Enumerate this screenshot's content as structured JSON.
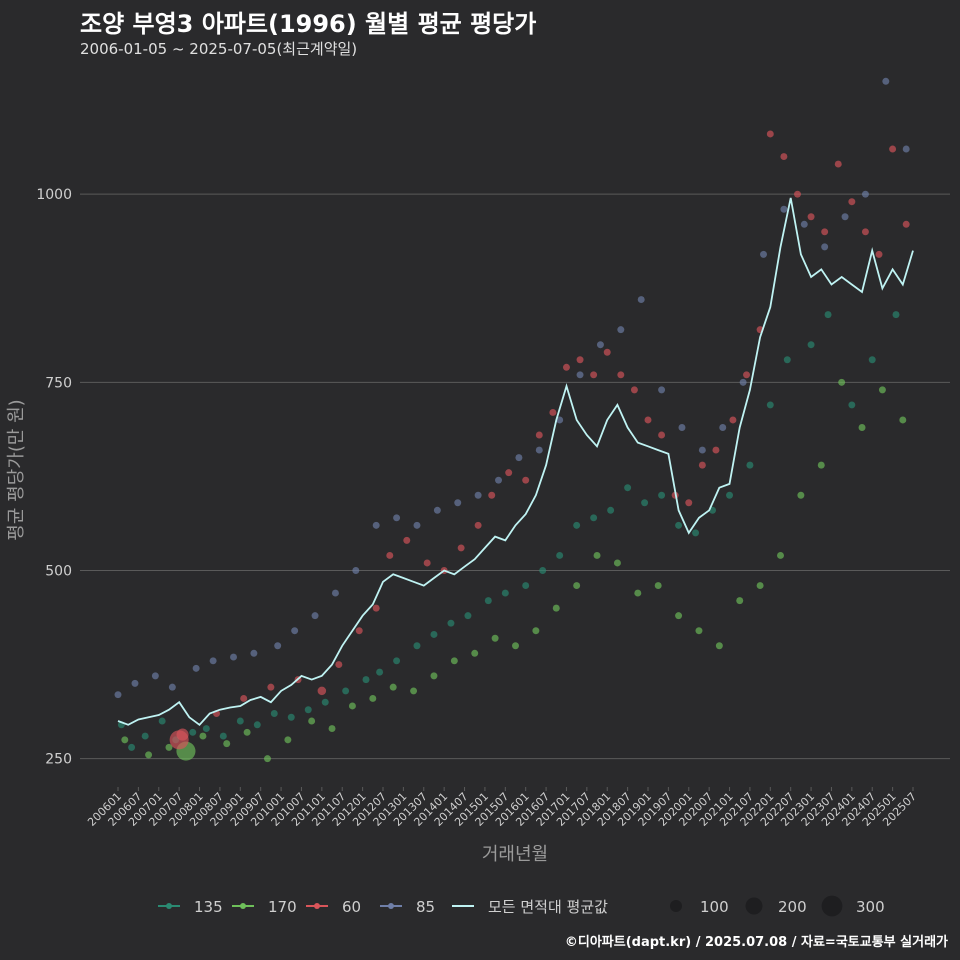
{
  "header": {
    "title": "조양 부영3 아파트(1996) 월별 평균 평당가",
    "subtitle": "2006-01-05 ~ 2025-07-05(최근계약일)"
  },
  "caption": "©디아파트(dapt.kr) / 2025.07.08 / 자료=국토교통부 실거래가",
  "colors": {
    "background": "#2a2a2c",
    "grid": "#5a5a5a",
    "text": "#cfcfcf",
    "series_135": "#2a8a72",
    "series_170": "#6ec05a",
    "series_60": "#d9555a",
    "series_85": "#6f7fa8",
    "average_line": "#bff3f3"
  },
  "chart_data": {
    "type": "scatter",
    "title": "조양 부영3 아파트(1996) 월별 평균 평당가",
    "subtitle": "2006-01-05 ~ 2025-07-05(최근계약일)",
    "xlabel": "거래년월",
    "ylabel": "평균 평당가(만 원)",
    "x_range": [
      "2006-01",
      "2025-07"
    ],
    "ylim": [
      215,
      1165
    ],
    "yticks": [
      250,
      500,
      750,
      1000
    ],
    "xtick_labels": [
      "200601",
      "200607",
      "200701",
      "200707",
      "200801",
      "200807",
      "200901",
      "200907",
      "201001",
      "201007",
      "201101",
      "201107",
      "201201",
      "201207",
      "201301",
      "201307",
      "201401",
      "201407",
      "201501",
      "201507",
      "201601",
      "201607",
      "201701",
      "201707",
      "201801",
      "201807",
      "201901",
      "201907",
      "202001",
      "202007",
      "202101",
      "202107",
      "202201",
      "202207",
      "202301",
      "202307",
      "202401",
      "202407",
      "202501",
      "202507"
    ],
    "grid": true,
    "legend": {
      "position": "bottom",
      "color_entries": [
        "135",
        "170",
        "60",
        "85",
        "모든 면적대 평균값"
      ],
      "size_entries": [
        "100",
        "200",
        "300"
      ]
    },
    "average_line": {
      "name": "모든 면적대 평균값",
      "x": [
        "2006-01",
        "2006-04",
        "2006-07",
        "2006-10",
        "2007-01",
        "2007-04",
        "2007-07",
        "2007-10",
        "2008-01",
        "2008-04",
        "2008-07",
        "2008-10",
        "2009-01",
        "2009-04",
        "2009-07",
        "2009-10",
        "2010-01",
        "2010-04",
        "2010-07",
        "2010-10",
        "2011-01",
        "2011-04",
        "2011-07",
        "2011-10",
        "2012-01",
        "2012-04",
        "2012-07",
        "2012-10",
        "2013-01",
        "2013-04",
        "2013-07",
        "2013-10",
        "2014-01",
        "2014-04",
        "2014-07",
        "2014-10",
        "2015-01",
        "2015-04",
        "2015-07",
        "2015-10",
        "2016-01",
        "2016-04",
        "2016-07",
        "2016-10",
        "2017-01",
        "2017-04",
        "2017-07",
        "2017-10",
        "2018-01",
        "2018-04",
        "2018-07",
        "2018-10",
        "2019-01",
        "2019-04",
        "2019-07",
        "2019-10",
        "2020-01",
        "2020-04",
        "2020-07",
        "2020-10",
        "2021-01",
        "2021-04",
        "2021-07",
        "2021-10",
        "2022-01",
        "2022-04",
        "2022-07",
        "2022-10",
        "2023-01",
        "2023-04",
        "2023-07",
        "2023-10",
        "2024-01",
        "2024-04",
        "2024-07",
        "2024-10",
        "2025-01",
        "2025-04",
        "2025-07"
      ],
      "y": [
        300,
        295,
        302,
        305,
        308,
        315,
        325,
        305,
        295,
        310,
        315,
        318,
        320,
        328,
        332,
        325,
        340,
        348,
        360,
        355,
        360,
        375,
        400,
        420,
        440,
        455,
        485,
        495,
        490,
        485,
        480,
        490,
        500,
        495,
        505,
        515,
        530,
        545,
        540,
        560,
        575,
        600,
        640,
        700,
        745,
        700,
        680,
        665,
        700,
        720,
        690,
        670,
        665,
        660,
        655,
        580,
        550,
        570,
        580,
        610,
        615,
        690,
        740,
        810,
        850,
        930,
        995,
        920,
        890,
        900,
        880,
        890,
        880,
        870,
        925,
        875,
        900,
        880,
        925
      ]
    },
    "series": [
      {
        "name": "135",
        "color": "#2a8a72",
        "x": [
          "2006-02",
          "2006-05",
          "2006-09",
          "2007-02",
          "2007-06",
          "2007-11",
          "2008-03",
          "2008-08",
          "2009-01",
          "2009-06",
          "2009-11",
          "2010-04",
          "2010-09",
          "2011-02",
          "2011-08",
          "2012-02",
          "2012-06",
          "2012-11",
          "2013-05",
          "2013-10",
          "2014-03",
          "2014-08",
          "2015-02",
          "2015-07",
          "2016-01",
          "2016-06",
          "2016-11",
          "2017-04",
          "2017-09",
          "2018-02",
          "2018-07",
          "2018-12",
          "2019-05",
          "2019-10",
          "2020-03",
          "2020-08",
          "2021-01",
          "2021-07",
          "2022-01",
          "2022-06",
          "2023-01",
          "2023-06",
          "2024-01",
          "2024-07",
          "2025-02"
        ],
        "y": [
          295,
          265,
          280,
          300,
          275,
          285,
          290,
          280,
          300,
          295,
          310,
          305,
          315,
          325,
          340,
          355,
          365,
          380,
          400,
          415,
          430,
          440,
          460,
          470,
          480,
          500,
          520,
          560,
          570,
          580,
          610,
          590,
          600,
          560,
          550,
          580,
          600,
          640,
          720,
          780,
          800,
          840,
          720,
          780,
          840
        ],
        "sizes": [
          40,
          40,
          40,
          40,
          40,
          40,
          40,
          40,
          40,
          40,
          40,
          40,
          40,
          40,
          40,
          40,
          40,
          40,
          40,
          40,
          40,
          40,
          40,
          40,
          40,
          40,
          40,
          40,
          40,
          40,
          40,
          40,
          40,
          40,
          40,
          40,
          40,
          40,
          40,
          40,
          40,
          40,
          40,
          40,
          40
        ]
      },
      {
        "name": "170",
        "color": "#6ec05a",
        "x": [
          "2006-03",
          "2006-10",
          "2007-04",
          "2007-09",
          "2008-02",
          "2008-09",
          "2009-03",
          "2009-09",
          "2010-03",
          "2010-10",
          "2011-04",
          "2011-10",
          "2012-04",
          "2012-10",
          "2013-04",
          "2013-10",
          "2014-04",
          "2014-10",
          "2015-04",
          "2015-10",
          "2016-04",
          "2016-10",
          "2017-04",
          "2017-10",
          "2018-04",
          "2018-10",
          "2019-04",
          "2019-10",
          "2020-04",
          "2020-10",
          "2021-04",
          "2021-10",
          "2022-04",
          "2022-10",
          "2023-04",
          "2023-10",
          "2024-04",
          "2024-10",
          "2025-04"
        ],
        "y": [
          275,
          255,
          265,
          260,
          280,
          270,
          285,
          250,
          275,
          300,
          290,
          320,
          330,
          345,
          340,
          360,
          380,
          390,
          410,
          400,
          420,
          450,
          480,
          520,
          510,
          470,
          480,
          440,
          420,
          400,
          460,
          480,
          520,
          600,
          640,
          750,
          690,
          740,
          700
        ],
        "sizes": [
          40,
          40,
          40,
          300,
          40,
          40,
          40,
          40,
          40,
          40,
          40,
          40,
          40,
          40,
          40,
          40,
          40,
          40,
          40,
          40,
          40,
          40,
          40,
          40,
          40,
          40,
          40,
          40,
          40,
          40,
          40,
          40,
          40,
          40,
          40,
          40,
          40,
          40,
          40
        ]
      },
      {
        "name": "60",
        "color": "#d9555a",
        "x": [
          "2007-07",
          "2007-08",
          "2008-06",
          "2009-02",
          "2009-10",
          "2010-06",
          "2011-01",
          "2011-06",
          "2011-12",
          "2012-05",
          "2012-09",
          "2013-02",
          "2013-08",
          "2014-01",
          "2014-06",
          "2014-11",
          "2015-03",
          "2015-08",
          "2016-01",
          "2016-05",
          "2016-09",
          "2017-01",
          "2017-05",
          "2017-09",
          "2018-01",
          "2018-05",
          "2018-09",
          "2019-01",
          "2019-05",
          "2019-09",
          "2020-01",
          "2020-05",
          "2020-09",
          "2021-02",
          "2021-06",
          "2021-10",
          "2022-01",
          "2022-05",
          "2022-09",
          "2023-01",
          "2023-05",
          "2023-09",
          "2024-01",
          "2024-05",
          "2024-09",
          "2025-01",
          "2025-05"
        ],
        "y": [
          275,
          282,
          310,
          330,
          345,
          355,
          340,
          375,
          420,
          450,
          520,
          540,
          510,
          500,
          530,
          560,
          600,
          630,
          620,
          680,
          710,
          770,
          780,
          760,
          790,
          760,
          740,
          700,
          680,
          600,
          590,
          640,
          660,
          700,
          760,
          820,
          1080,
          1050,
          1000,
          970,
          950,
          1040,
          990,
          950,
          920,
          1060,
          960
        ],
        "sizes": [
          300,
          120,
          40,
          40,
          40,
          40,
          60,
          40,
          40,
          40,
          40,
          40,
          40,
          40,
          40,
          40,
          40,
          40,
          40,
          40,
          40,
          40,
          40,
          40,
          40,
          40,
          40,
          40,
          40,
          40,
          40,
          40,
          40,
          40,
          40,
          40,
          40,
          40,
          40,
          40,
          40,
          40,
          40,
          40,
          40,
          40,
          40
        ]
      },
      {
        "name": "85",
        "color": "#6f7fa8",
        "x": [
          "2006-01",
          "2006-06",
          "2006-12",
          "2007-05",
          "2007-12",
          "2008-05",
          "2008-11",
          "2009-05",
          "2009-12",
          "2010-05",
          "2010-11",
          "2011-05",
          "2011-11",
          "2012-05",
          "2012-11",
          "2013-05",
          "2013-11",
          "2014-05",
          "2014-11",
          "2015-05",
          "2015-11",
          "2016-05",
          "2016-11",
          "2017-05",
          "2017-11",
          "2018-05",
          "2018-11",
          "2019-05",
          "2019-11",
          "2020-05",
          "2020-11",
          "2021-05",
          "2021-11",
          "2022-05",
          "2022-11",
          "2023-05",
          "2023-11",
          "2024-05",
          "2024-11",
          "2025-05"
        ],
        "y": [
          335,
          350,
          360,
          345,
          370,
          380,
          385,
          390,
          400,
          420,
          440,
          470,
          500,
          560,
          570,
          560,
          580,
          590,
          600,
          620,
          650,
          660,
          700,
          760,
          800,
          820,
          860,
          740,
          690,
          660,
          690,
          750,
          920,
          980,
          960,
          930,
          970,
          1000,
          1150,
          1060
        ],
        "sizes": [
          40,
          40,
          40,
          40,
          40,
          40,
          40,
          40,
          40,
          40,
          40,
          40,
          40,
          40,
          40,
          40,
          40,
          40,
          40,
          40,
          40,
          40,
          40,
          40,
          40,
          40,
          40,
          40,
          40,
          40,
          40,
          40,
          40,
          40,
          40,
          40,
          40,
          40,
          40,
          40
        ]
      }
    ]
  }
}
